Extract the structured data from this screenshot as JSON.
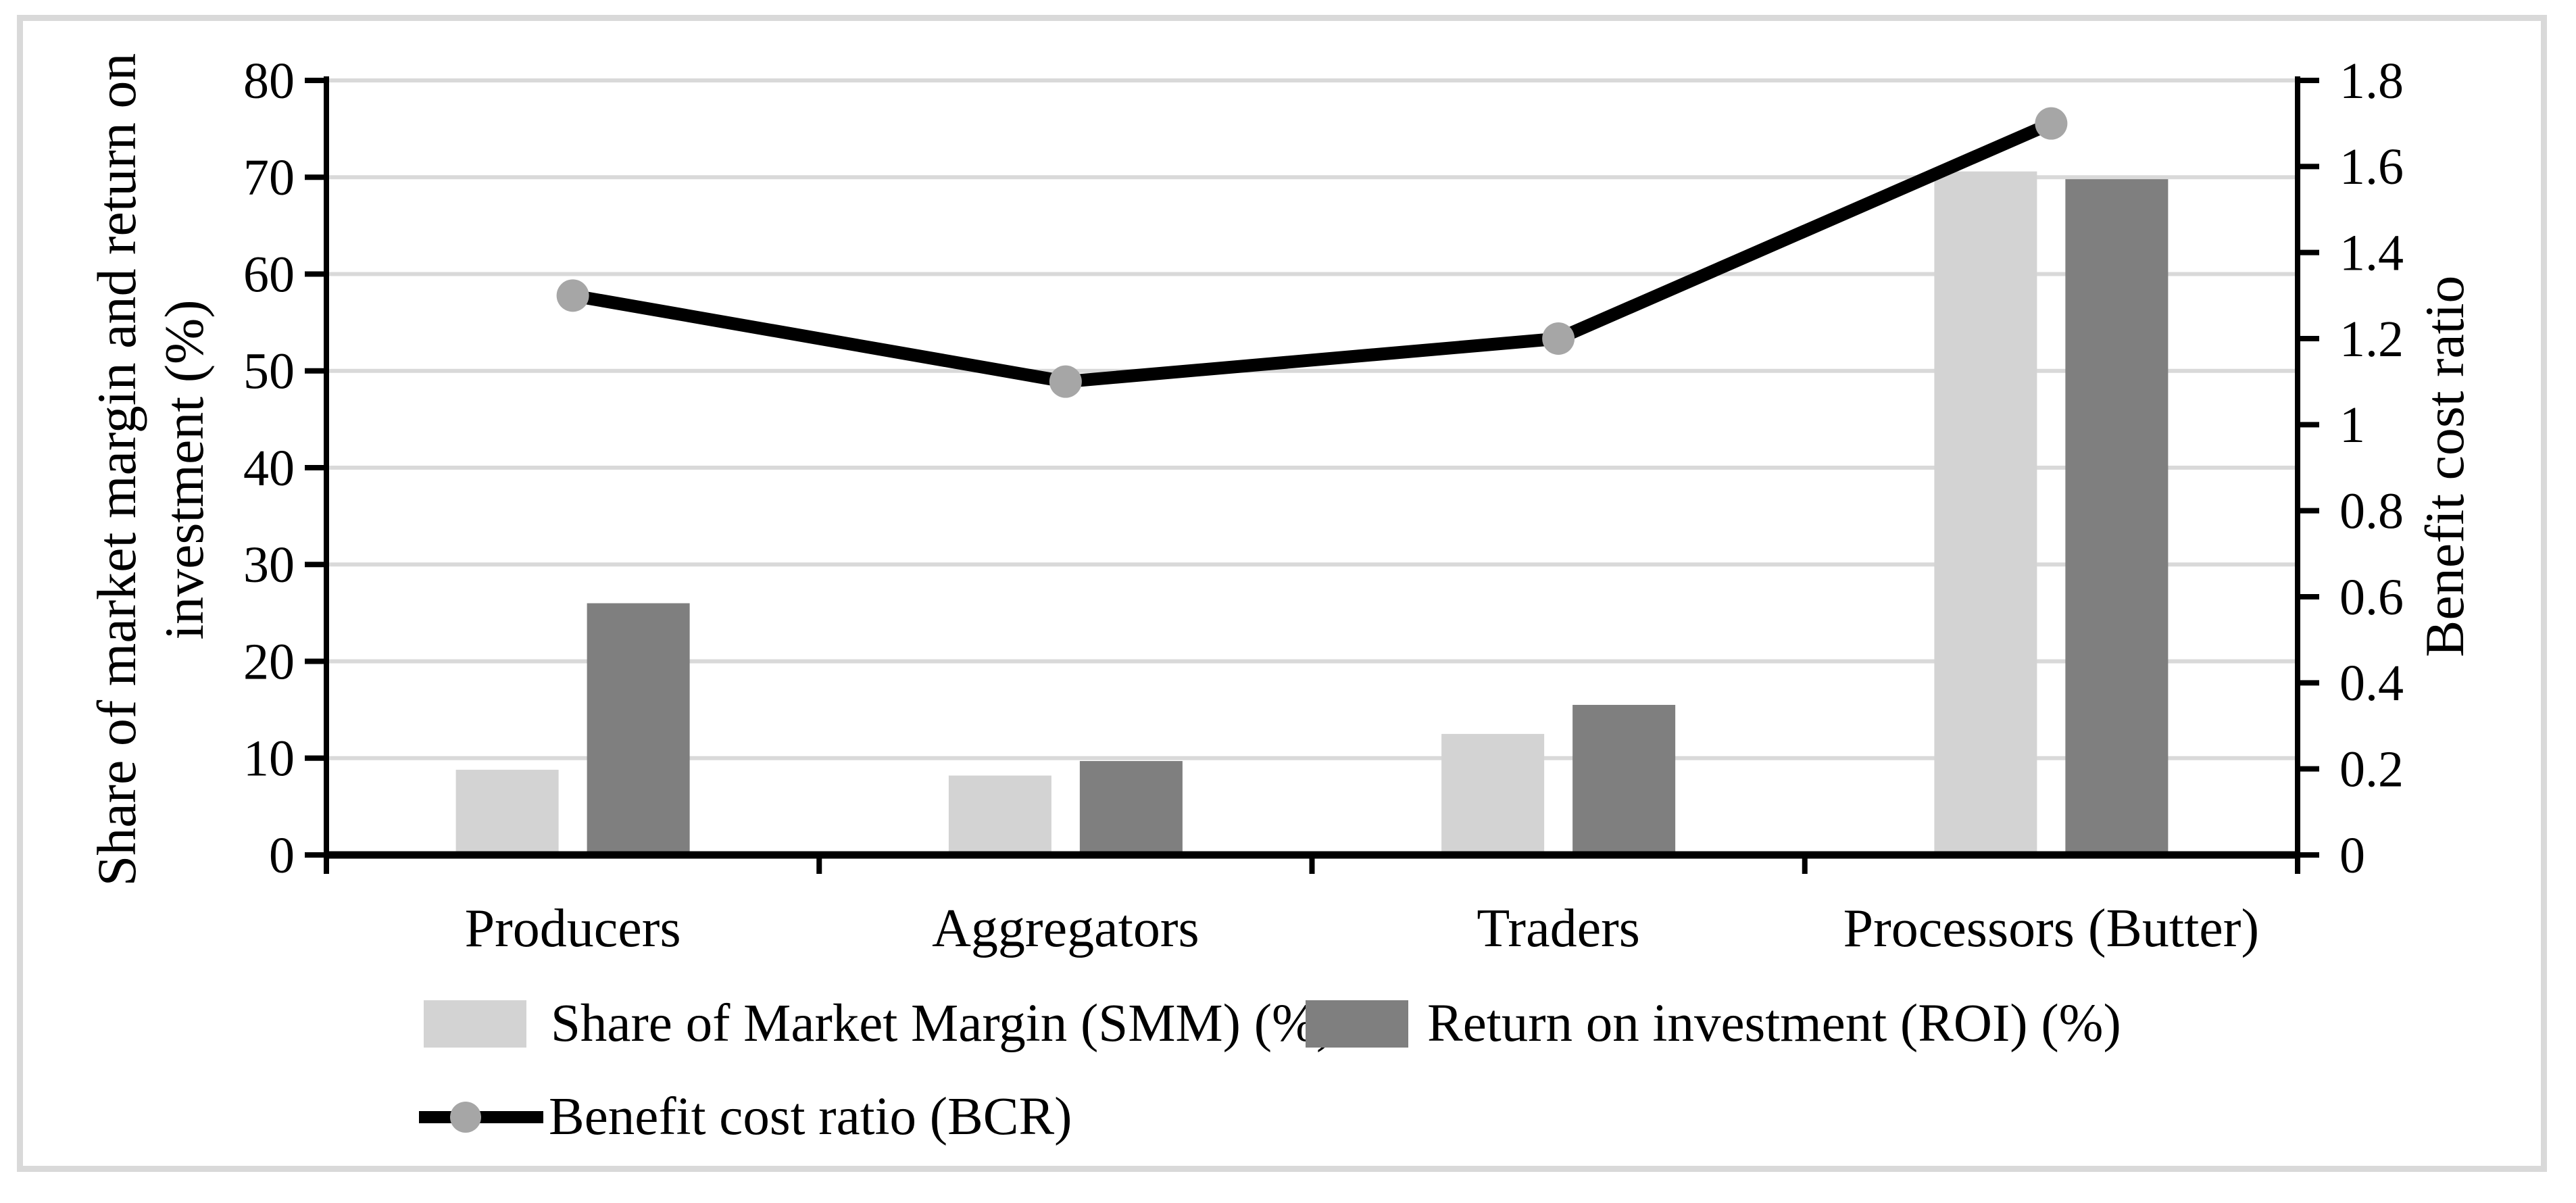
{
  "frame_color": "#d9d9d9",
  "chart_data": {
    "type": "bar+line combo",
    "categories": [
      "Producers",
      "Aggregators",
      "Traders",
      "Processors (Butter)"
    ],
    "series": [
      {
        "name": "Share of Market Margin (SMM) (%)",
        "type": "bar",
        "axis": "left",
        "color": "#d3d3d3",
        "values": [
          8.8,
          8.2,
          12.5,
          70.6
        ]
      },
      {
        "name": "Return on investment (ROI) (%)",
        "type": "bar",
        "axis": "left",
        "color": "#7f7f7f",
        "values": [
          26.0,
          9.7,
          15.5,
          69.8
        ]
      },
      {
        "name": "Benefit cost ratio (BCR)",
        "type": "line",
        "axis": "right",
        "color": "#000000",
        "marker_color": "#a6a6a6",
        "values": [
          1.3,
          1.1,
          1.2,
          1.7
        ]
      }
    ],
    "left_axis": {
      "title_line1": "Share of market margin and return on",
      "title_line2": "investment (%)",
      "min": 0,
      "max": 80,
      "tick_step": 10,
      "tick_labels": [
        "0",
        "10",
        "20",
        "30",
        "40",
        "50",
        "60",
        "70",
        "80"
      ]
    },
    "right_axis": {
      "title": "Benefit cost ratio",
      "min": 0,
      "max": 1.8,
      "tick_step": 0.2,
      "tick_labels": [
        "0",
        "0.2",
        "0.4",
        "0.6",
        "0.8",
        "1",
        "1.2",
        "1.4",
        "1.6",
        "1.8"
      ]
    },
    "gridlines": true,
    "gridline_color": "#d9d9d9",
    "legend_position": "bottom-left"
  },
  "legend": {
    "smm": "Share of Market Margin (SMM) (%)",
    "roi": "Return on investment (ROI) (%)",
    "bcr": "Benefit cost ratio (BCR)"
  }
}
